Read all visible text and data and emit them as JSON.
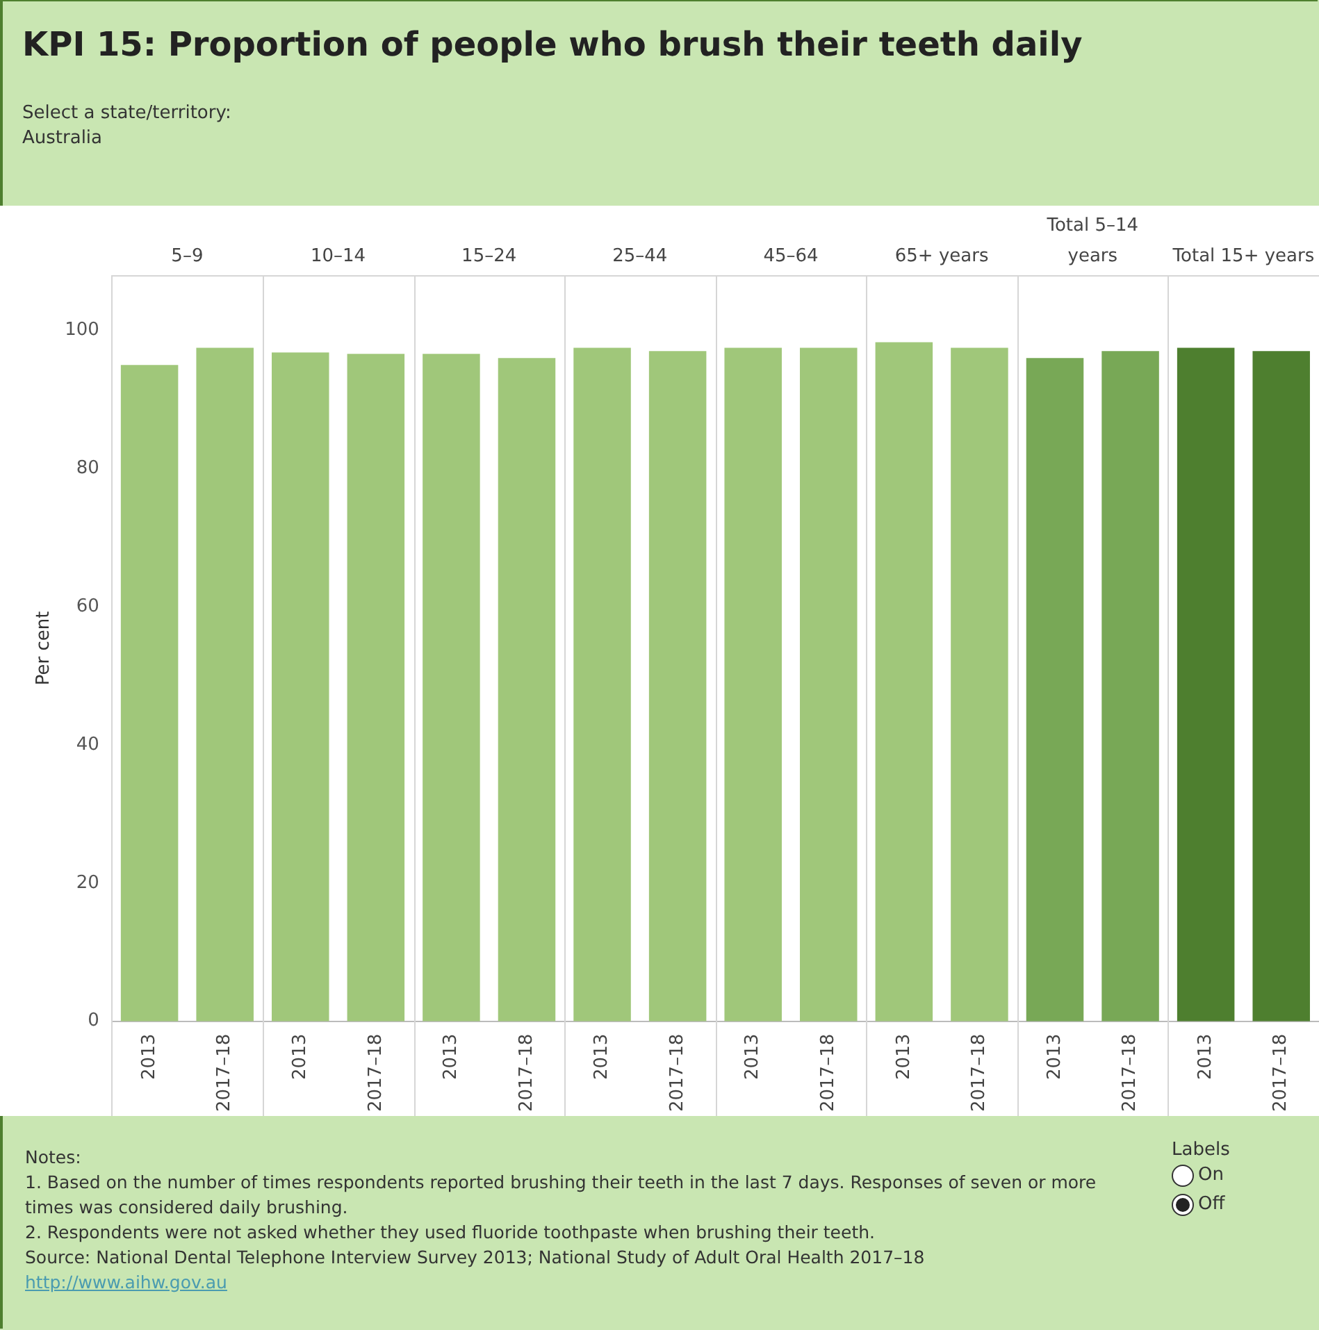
{
  "chart_data": {
    "type": "bar",
    "title": "KPI 15: Proportion of people who brush their teeth daily",
    "subtitle": "Select a state/territory:",
    "ylabel": "Per cent",
    "categories": [
      "2013",
      "2017–18",
      "2013",
      "2017–18",
      "2013",
      "2017–18",
      "2013",
      "2017–18",
      "2013",
      "2017–18",
      "2013",
      "2017–18",
      "2013",
      "2017–18",
      "2013",
      "2017–18"
    ],
    "values": [
      95.0,
      97.5,
      96.8,
      96.6,
      96.6,
      96.0,
      97.5,
      97.0,
      97.5,
      97.5,
      98.3,
      97.5,
      96.0,
      97.0,
      97.5,
      97.0
    ],
    "colors": [
      "#a0c77a",
      "#a0c77a",
      "#a0c77a",
      "#a0c77a",
      "#a0c77a",
      "#a0c77a",
      "#a0c77a",
      "#a0c77a",
      "#a0c77a",
      "#a0c77a",
      "#a0c77a",
      "#a0c77a",
      "#78a856",
      "#78a856",
      "#4e7f2f",
      "#4e7f2f"
    ],
    "ylim": [
      0,
      108
    ],
    "yticks": [
      0,
      20,
      40,
      60,
      80,
      100
    ],
    "grid": false,
    "legend": false,
    "annotations": [
      "5–9",
      "10–14",
      "15–24",
      "25–44",
      "45–64",
      "65+ years",
      "Total 5–14 years",
      "Total 15+ years",
      "Australia",
      "Labels",
      "On",
      "Off",
      "Notes:",
      "1. Based on the number of times respondents reported brushing their teeth in the last 7 days. Responses of seven or more times was considered daily brushing.",
      "2. Respondents were not asked whether they used fluoride toothpaste when brushing their teeth.",
      "Source: National Dental Telephone Interview Survey 2013; National Study of Adult Oral Health 2017–18",
      "http://www.aihw.gov.au"
    ]
  }
}
